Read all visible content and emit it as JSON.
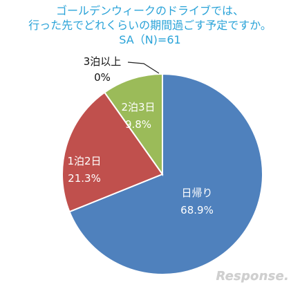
{
  "header": {
    "title_line_1": "ゴールデンウィークのドライブでは、",
    "title_line_2": "行った先でどれくらいの期間過ごす予定ですか。",
    "subtitle": "SA（N)=61"
  },
  "chart_data": {
    "type": "pie",
    "labels": [
      "日帰り",
      "1泊2日",
      "2泊3日",
      "3泊以上"
    ],
    "values": [
      68.9,
      21.3,
      9.8,
      0
    ],
    "value_labels": [
      "68.9%",
      "21.3%",
      "9.8%",
      "0%"
    ],
    "colors": [
      "#4f81bd",
      "#c0504d",
      "#9bbb59",
      "#8064a2"
    ],
    "start_position": "12 o'clock",
    "direction": "clockwise",
    "legend": "none"
  },
  "watermark": {
    "text": "Response."
  }
}
